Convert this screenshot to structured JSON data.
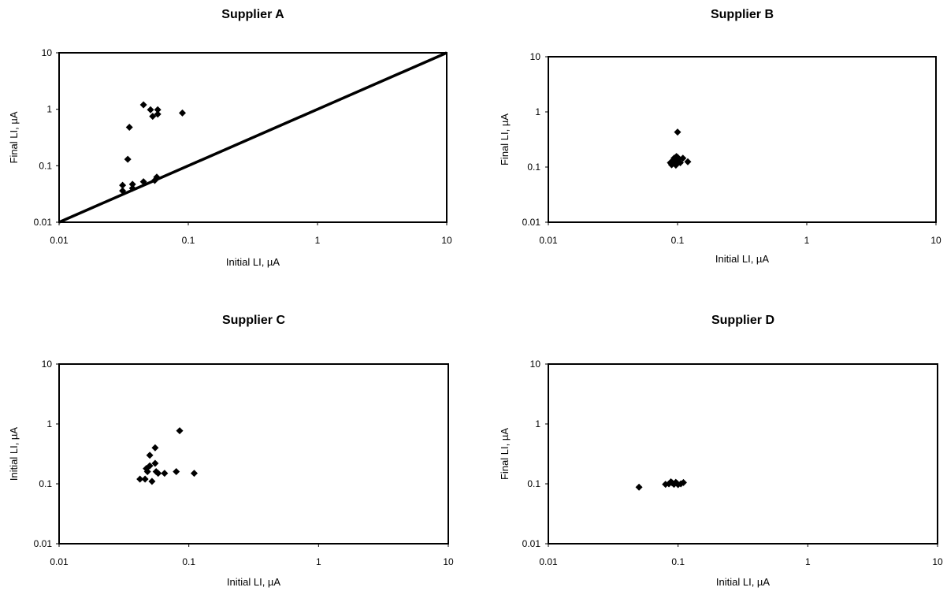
{
  "chart_data": [
    {
      "type": "scatter",
      "title": "Supplier A",
      "xlabel": "Initial LI, µA",
      "ylabel": "Final LI, µA",
      "xscale": "log",
      "yscale": "log",
      "xlim": [
        0.01,
        10
      ],
      "ylim": [
        0.01,
        10
      ],
      "xticks": [
        "0.01",
        "0.1",
        "1",
        "10"
      ],
      "yticks": [
        "0.01",
        "0.1",
        "1",
        "10"
      ],
      "grid": false,
      "reference_line": {
        "x": [
          0.01,
          10
        ],
        "y": [
          0.01,
          10
        ]
      },
      "points": [
        {
          "x": 0.045,
          "y": 1.2
        },
        {
          "x": 0.051,
          "y": 0.98
        },
        {
          "x": 0.058,
          "y": 0.98
        },
        {
          "x": 0.053,
          "y": 0.75
        },
        {
          "x": 0.058,
          "y": 0.82
        },
        {
          "x": 0.09,
          "y": 0.86
        },
        {
          "x": 0.035,
          "y": 0.48
        },
        {
          "x": 0.034,
          "y": 0.13
        },
        {
          "x": 0.031,
          "y": 0.045
        },
        {
          "x": 0.031,
          "y": 0.036
        },
        {
          "x": 0.037,
          "y": 0.047
        },
        {
          "x": 0.037,
          "y": 0.04
        },
        {
          "x": 0.045,
          "y": 0.052
        },
        {
          "x": 0.055,
          "y": 0.055
        },
        {
          "x": 0.057,
          "y": 0.063
        }
      ]
    },
    {
      "type": "scatter",
      "title": "Supplier B",
      "xlabel": "Initial LI, µA",
      "ylabel": "Final LI, µA",
      "xscale": "log",
      "yscale": "log",
      "xlim": [
        0.01,
        10
      ],
      "ylim": [
        0.01,
        10
      ],
      "xticks": [
        "0.01",
        "0.1",
        "1",
        "10"
      ],
      "yticks": [
        "0.01",
        "0.1",
        "1",
        "10"
      ],
      "grid": false,
      "points": [
        {
          "x": 0.1,
          "y": 0.43
        },
        {
          "x": 0.088,
          "y": 0.12
        },
        {
          "x": 0.09,
          "y": 0.11
        },
        {
          "x": 0.092,
          "y": 0.13
        },
        {
          "x": 0.094,
          "y": 0.145
        },
        {
          "x": 0.096,
          "y": 0.115
        },
        {
          "x": 0.098,
          "y": 0.155
        },
        {
          "x": 0.1,
          "y": 0.125
        },
        {
          "x": 0.102,
          "y": 0.14
        },
        {
          "x": 0.105,
          "y": 0.12
        },
        {
          "x": 0.11,
          "y": 0.145
        },
        {
          "x": 0.12,
          "y": 0.125
        },
        {
          "x": 0.093,
          "y": 0.135
        },
        {
          "x": 0.097,
          "y": 0.108
        },
        {
          "x": 0.1,
          "y": 0.15
        }
      ]
    },
    {
      "type": "scatter",
      "title": "Supplier C",
      "xlabel": "Initial LI, µA",
      "ylabel": "Initial LI, µA",
      "xscale": "log",
      "yscale": "log",
      "xlim": [
        0.01,
        10
      ],
      "ylim": [
        0.01,
        10
      ],
      "xticks": [
        "0.01",
        "0.1",
        "1",
        "10"
      ],
      "yticks": [
        "0.01",
        "0.1",
        "1",
        "10"
      ],
      "grid": false,
      "points": [
        {
          "x": 0.085,
          "y": 0.77
        },
        {
          "x": 0.055,
          "y": 0.4
        },
        {
          "x": 0.05,
          "y": 0.3
        },
        {
          "x": 0.055,
          "y": 0.22
        },
        {
          "x": 0.05,
          "y": 0.2
        },
        {
          "x": 0.047,
          "y": 0.18
        },
        {
          "x": 0.048,
          "y": 0.16
        },
        {
          "x": 0.056,
          "y": 0.16
        },
        {
          "x": 0.058,
          "y": 0.15
        },
        {
          "x": 0.065,
          "y": 0.15
        },
        {
          "x": 0.08,
          "y": 0.16
        },
        {
          "x": 0.11,
          "y": 0.15
        },
        {
          "x": 0.042,
          "y": 0.12
        },
        {
          "x": 0.046,
          "y": 0.12
        },
        {
          "x": 0.052,
          "y": 0.11
        }
      ]
    },
    {
      "type": "scatter",
      "title": "Supplier D",
      "xlabel": "Initial LI, µA",
      "ylabel": "Final LI, µA",
      "xscale": "log",
      "yscale": "log",
      "xlim": [
        0.01,
        10
      ],
      "ylim": [
        0.01,
        10
      ],
      "xticks": [
        "0.01",
        "0.1",
        "1",
        "10"
      ],
      "yticks": [
        "0.01",
        "0.1",
        "1",
        "10"
      ],
      "grid": false,
      "points": [
        {
          "x": 0.05,
          "y": 0.088
        },
        {
          "x": 0.08,
          "y": 0.098
        },
        {
          "x": 0.085,
          "y": 0.1
        },
        {
          "x": 0.09,
          "y": 0.104
        },
        {
          "x": 0.093,
          "y": 0.098
        },
        {
          "x": 0.096,
          "y": 0.106
        },
        {
          "x": 0.1,
          "y": 0.097
        },
        {
          "x": 0.105,
          "y": 0.1
        },
        {
          "x": 0.11,
          "y": 0.105
        },
        {
          "x": 0.088,
          "y": 0.108
        },
        {
          "x": 0.098,
          "y": 0.102
        }
      ]
    }
  ]
}
